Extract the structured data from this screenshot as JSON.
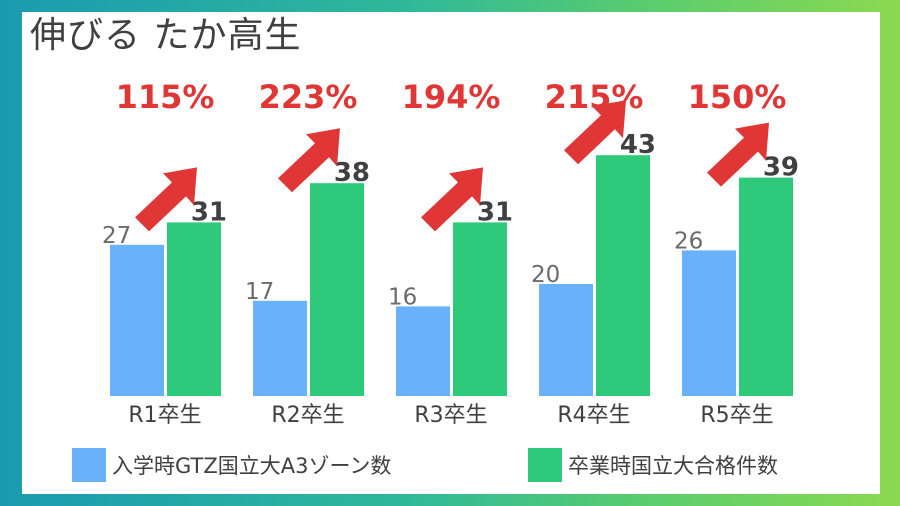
{
  "title": "伸びる たか高生",
  "colors": {
    "entry": "#6ab1fc",
    "grad": "#2ec97a",
    "arrow": "#e13636",
    "growth_text": "#e13636",
    "label_text": "#404040"
  },
  "legend": {
    "entry": "入学時GTZ国立大A3ゾーン数",
    "grad": "卒業時国立大合格件数"
  },
  "chart_data": {
    "type": "bar",
    "title": "伸びる たか高生",
    "categories": [
      "R1卒生",
      "R2卒生",
      "R3卒生",
      "R4卒生",
      "R5卒生"
    ],
    "series": [
      {
        "name": "入学時GTZ国立大A3ゾーン数",
        "values": [
          27,
          17,
          16,
          20,
          26
        ]
      },
      {
        "name": "卒業時国立大合格件数",
        "values": [
          31,
          38,
          31,
          43,
          39
        ]
      }
    ],
    "growth_labels": [
      "115%",
      "223%",
      "194%",
      "215%",
      "150%"
    ],
    "ylim": [
      0,
      45
    ],
    "grid": false,
    "legend_position": "bottom"
  }
}
